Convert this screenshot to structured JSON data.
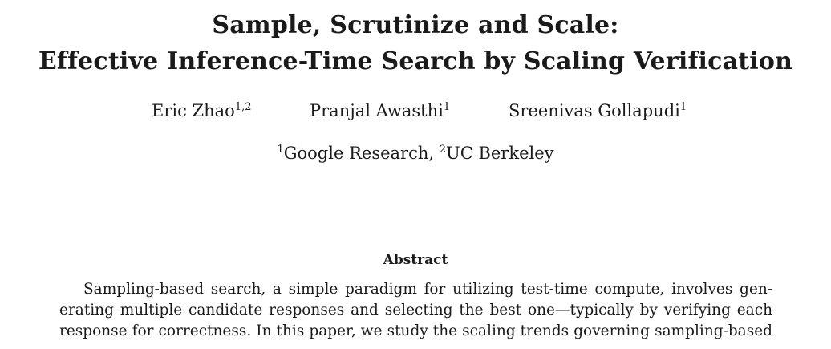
{
  "paper": {
    "title_line1": "Sample, Scrutinize and Scale:",
    "title_line2": "Effective Inference-Time Search by Scaling Verification",
    "authors": [
      {
        "name": "Eric Zhao",
        "affiliation_marks": "1,2"
      },
      {
        "name": "Pranjal Awasthi",
        "affiliation_marks": "1"
      },
      {
        "name": "Sreenivas Gollapudi",
        "affiliation_marks": "1"
      }
    ],
    "affiliations": {
      "mark1": "1",
      "name1": "Google Research, ",
      "mark2": "2",
      "name2": "UC Berkeley"
    },
    "abstract": {
      "heading": "Abstract",
      "lines": [
        "Sampling-based search, a simple paradigm for utilizing test-time compute, involves gen-",
        "erating multiple candidate responses and selecting the best one—typically by verifying each",
        "response for correctness. In this paper, we study the scaling trends governing sampling-based"
      ]
    }
  }
}
